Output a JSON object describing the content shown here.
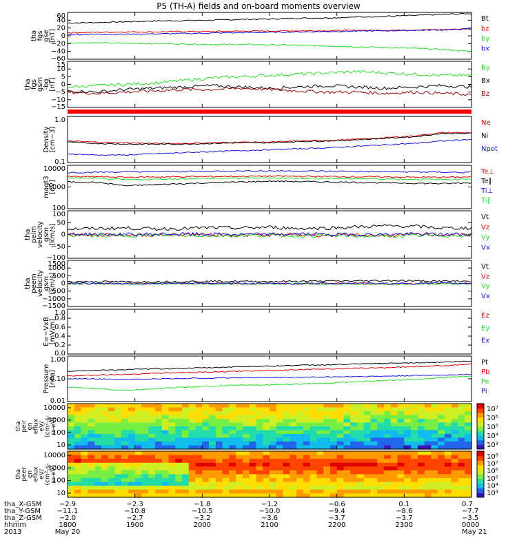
{
  "title": "P5 (TH-A) fields and on-board moments overview",
  "colors": {
    "black": "#000000",
    "red": "#e00000",
    "green": "#22dd22",
    "blue": "#1010dd",
    "darkred": "#990000"
  },
  "chart_data": {
    "type": "line",
    "x_range": [
      "2013-05-20 18:00",
      "2013-05-21 00:00"
    ],
    "panels": [
      {
        "ylabel": [
          "tha",
          "fgs",
          "gse",
          "[nT]"
        ],
        "ticks": [
          "60",
          "40",
          "20",
          "0",
          "−20",
          "−40",
          "−60"
        ],
        "ylim": [
          -60,
          60
        ],
        "series": [
          {
            "name": "Bt",
            "color": "black",
            "values": [
              33,
              34,
              36,
              38,
              39,
              40,
              42,
              43,
              45,
              46,
              48,
              50,
              52,
              55,
              57
            ]
          },
          {
            "name": "bz",
            "color": "red",
            "values": [
              8,
              9,
              10,
              10,
              11,
              11,
              12,
              12,
              13,
              13,
              14,
              14,
              15,
              16,
              18
            ]
          },
          {
            "name": "by",
            "color": "green",
            "values": [
              -18,
              -18,
              -19,
              -20,
              -21,
              -22,
              -22,
              -23,
              -24,
              -26,
              -28,
              -30,
              -32,
              -35,
              -40
            ]
          },
          {
            "name": "bx",
            "color": "blue",
            "values": [
              3,
              4,
              4,
              5,
              6,
              7,
              8,
              9,
              10,
              11,
              12,
              13,
              14,
              15,
              18
            ]
          }
        ]
      },
      {
        "ylabel": [
          "tha",
          "fgs",
          "gsm",
          "-bg",
          "[nT]"
        ],
        "ticks": [
          "15",
          "10",
          "5",
          "0",
          "−5",
          "−10",
          "−15"
        ],
        "ylim": [
          -18,
          18
        ],
        "series": [
          {
            "name": "By",
            "color": "green",
            "values": [
              -2,
              -1,
              0,
              1,
              3,
              5,
              6,
              7,
              8,
              9,
              10,
              9,
              8,
              7,
              7
            ]
          },
          {
            "name": "Bx",
            "color": "black",
            "values": [
              -5,
              -6,
              -4,
              -3,
              -2,
              -1,
              -2,
              -3,
              -2,
              -1,
              -2,
              -3,
              -2,
              -1,
              -2
            ]
          },
          {
            "name": "Bz",
            "color": "darkred",
            "values": [
              -6,
              -7,
              -6,
              -5,
              -4,
              -4,
              -3,
              -4,
              -5,
              -6,
              -6,
              -7,
              -6,
              -7,
              -8
            ]
          }
        ]
      },
      {
        "ylabel": [
          "Density",
          "[cm−3]"
        ],
        "ticks": [
          "1.0",
          "0.1"
        ],
        "log": true,
        "ylim": [
          0.1,
          1.2
        ],
        "series": [
          {
            "name": "Ne",
            "color": "red",
            "values": [
              0.32,
              0.3,
              0.29,
              0.28,
              0.28,
              0.29,
              0.3,
              0.3,
              0.32,
              0.33,
              0.35,
              0.38,
              0.42,
              0.5,
              0.5
            ]
          },
          {
            "name": "Ni",
            "color": "black",
            "values": [
              0.3,
              0.28,
              0.27,
              0.27,
              0.27,
              0.28,
              0.29,
              0.29,
              0.31,
              0.32,
              0.34,
              0.37,
              0.4,
              0.48,
              0.48
            ]
          },
          {
            "name": "Npot",
            "color": "blue",
            "values": [
              0.16,
              0.15,
              0.15,
              0.16,
              0.17,
              0.18,
              0.19,
              0.2,
              0.21,
              0.22,
              0.24,
              0.26,
              0.28,
              0.32,
              0.35
            ]
          }
        ]
      },
      {
        "ylabel": [
          "magt3",
          "[eV]"
        ],
        "ticks": [
          "10000",
          "1000",
          "100"
        ],
        "log": true,
        "ylim": [
          100,
          15000
        ],
        "series": [
          {
            "name": "Te⊥",
            "color": "red",
            "values": [
              4000,
              4000,
              3800,
              3900,
              4000,
              4100,
              4200,
              4300,
              4200,
              4100,
              4000,
              3900,
              3800,
              3800,
              3900
            ]
          },
          {
            "name": "Te∥",
            "color": "black",
            "values": [
              2200,
              2100,
              1400,
              1600,
              1800,
              2000,
              2200,
              2400,
              2300,
              2200,
              2100,
              2000,
              1900,
              1800,
              2000
            ]
          },
          {
            "name": "Ti⊥",
            "color": "blue",
            "values": [
              6500,
              6800,
              7000,
              7200,
              7400,
              7600,
              7800,
              7900,
              7800,
              7600,
              7400,
              7200,
              7000,
              6800,
              6600
            ]
          },
          {
            "name": "Ti∥",
            "color": "green",
            "values": [
              3500,
              3300,
              2800,
              3000,
              3200,
              3300,
              3400,
              3500,
              3400,
              3300,
              3200,
              3100,
              3000,
              2900,
              3100
            ]
          }
        ]
      },
      {
        "ylabel": [
          "tha",
          "peim",
          "velocity",
          "gsm",
          "[km/s]"
        ],
        "ticks": [
          "100",
          "50",
          "0",
          "−50",
          "−100"
        ],
        "ylim": [
          -110,
          110
        ],
        "series": [
          {
            "name": "Vt",
            "color": "black",
            "values": [
              25,
              28,
              30,
              26,
              28,
              32,
              30,
              34,
              28,
              30,
              35,
              40,
              38,
              30,
              30
            ]
          },
          {
            "name": "Vz",
            "color": "red",
            "values": [
              0,
              -2,
              -3,
              -2,
              0,
              -1,
              -3,
              -2,
              0,
              -4,
              -3,
              -5,
              -2,
              -1,
              0
            ]
          },
          {
            "name": "Vy",
            "color": "green",
            "values": [
              -4,
              -6,
              -5,
              -3,
              -4,
              -6,
              -5,
              -4,
              -6,
              -5,
              -7,
              -8,
              -6,
              -5,
              -4
            ]
          },
          {
            "name": "Vx",
            "color": "blue",
            "values": [
              2,
              1,
              0,
              1,
              2,
              1,
              0,
              1,
              2,
              1,
              0,
              1,
              2,
              1,
              1
            ]
          }
        ]
      },
      {
        "ylabel": [
          "tha",
          "peem",
          "velocity",
          "gsm",
          "[km/s]"
        ],
        "ticks": [
          "1500",
          "1000",
          "500",
          "0",
          "−500",
          "−1000",
          "−1500"
        ],
        "ylim": [
          -1600,
          1600
        ],
        "series": [
          {
            "name": "Vt",
            "color": "black",
            "values": [
              120,
              130,
              110,
              120,
              130,
              150,
              140,
              130,
              150,
              160,
              170,
              200,
              180,
              160,
              150
            ]
          },
          {
            "name": "Vz",
            "color": "red",
            "values": [
              0,
              -20,
              10,
              -10,
              20,
              0,
              -10,
              10,
              -20,
              0,
              10,
              -30,
              -10,
              0,
              10
            ]
          },
          {
            "name": "Vy",
            "color": "green",
            "values": [
              -20,
              -10,
              -30,
              -20,
              -10,
              -30,
              -20,
              -10,
              -30,
              -20,
              -40,
              -60,
              -30,
              -20,
              -10
            ]
          },
          {
            "name": "Vx",
            "color": "blue",
            "values": [
              0,
              10,
              0,
              -10,
              0,
              10,
              0,
              -10,
              0,
              10,
              0,
              -10,
              0,
              10,
              0
            ]
          }
        ]
      },
      {
        "ylabel": [
          "E=−VxB",
          "[mV/m]"
        ],
        "ticks": [
          "1.0",
          "0.8",
          "0.6",
          "0.4",
          "0.2",
          "0.0"
        ],
        "ylim": [
          0,
          1
        ],
        "series": [
          {
            "name": "Ez",
            "color": "red",
            "values": []
          },
          {
            "name": "Ey",
            "color": "green",
            "values": []
          },
          {
            "name": "Ex",
            "color": "blue",
            "values": []
          }
        ]
      },
      {
        "ylabel": [
          "Pressure",
          "[nPa]"
        ],
        "ticks": [
          "1.00",
          "0.10",
          "0.01"
        ],
        "log": true,
        "ylim": [
          0.01,
          3
        ],
        "series": [
          {
            "name": "Pt",
            "color": "black",
            "values": [
              0.45,
              0.5,
              0.55,
              0.6,
              0.65,
              0.7,
              0.8,
              0.85,
              0.95,
              1.0,
              1.1,
              1.2,
              1.3,
              1.4,
              1.6
            ]
          },
          {
            "name": "Pb",
            "color": "red",
            "values": [
              0.25,
              0.28,
              0.3,
              0.35,
              0.38,
              0.4,
              0.45,
              0.5,
              0.55,
              0.6,
              0.65,
              0.7,
              0.8,
              0.9,
              1.1
            ]
          },
          {
            "name": "Pe",
            "color": "green",
            "values": [
              0.06,
              0.05,
              0.04,
              0.05,
              0.06,
              0.07,
              0.08,
              0.08,
              0.09,
              0.1,
              0.12,
              0.14,
              0.16,
              0.2,
              0.25
            ]
          },
          {
            "name": "Pi",
            "color": "blue",
            "values": [
              0.18,
              0.17,
              0.16,
              0.17,
              0.18,
              0.19,
              0.2,
              0.2,
              0.21,
              0.22,
              0.23,
              0.24,
              0.26,
              0.28,
              0.3
            ]
          }
        ]
      }
    ],
    "spectrograms": [
      {
        "ylabel": [
          "tha",
          "peir",
          "en",
          "eflux",
          "eV/",
          "(cm²-s-",
          "sr-eV)"
        ],
        "ticks": [
          "10000",
          "1000",
          "100",
          "10"
        ],
        "colorbar": [
          "10⁷",
          "10⁶",
          "10⁵",
          "10⁴",
          "10³"
        ]
      },
      {
        "ylabel": [
          "tha",
          "peer",
          "en",
          "eflux",
          "eV/",
          "(cm²-s-",
          "sr-eV)"
        ],
        "ticks": [
          "10000",
          "1000",
          "100",
          "10"
        ],
        "colorbar": [
          "10⁸",
          "10⁷",
          "10⁶",
          "10⁵",
          "10⁴",
          "10³"
        ]
      }
    ],
    "xaxis": {
      "rows": [
        {
          "label": "tha_X-GSM",
          "values": [
            "−2.9",
            "−2.3",
            "−1.8",
            "−1.2",
            "−0.6",
            "0.1",
            "0.7"
          ]
        },
        {
          "label": "tha_Y-GSM",
          "values": [
            "−11.1",
            "−10.8",
            "−10.5",
            "−10.0",
            "−9.4",
            "−8.6",
            "−7.7"
          ]
        },
        {
          "label": "tha_Z-GSM",
          "values": [
            "−2.0",
            "−2.7",
            "−3.2",
            "−3.6",
            "−3.7",
            "−3.7",
            "−3.5"
          ]
        },
        {
          "label": "hhmm",
          "values": [
            "1800",
            "1900",
            "2000",
            "2100",
            "2200",
            "2300",
            "0000"
          ]
        }
      ],
      "year": "2013",
      "date_start": "May 20",
      "date_end": "May 21"
    }
  }
}
